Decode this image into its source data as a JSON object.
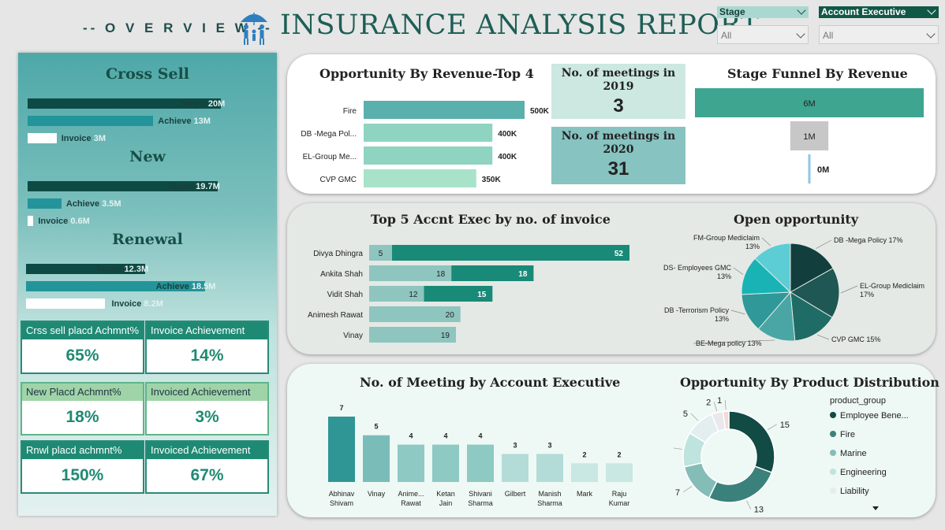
{
  "header": {
    "overview": "-- O V E R V I E W --",
    "title": "INSURANCE ANALYSIS REPORT",
    "filters": [
      {
        "label": "Stage",
        "value": "All"
      },
      {
        "label": "Account Executive",
        "value": "All"
      }
    ]
  },
  "left_panel": {
    "sections": [
      {
        "title": "Cross Sell",
        "bars": [
          {
            "label": "Target",
            "value": "20M",
            "amount": 20
          },
          {
            "label": "Achieve",
            "value": "13M",
            "amount": 13
          },
          {
            "label": "Invoice",
            "value": "3M",
            "amount": 3
          }
        ]
      },
      {
        "title": "New",
        "bars": [
          {
            "label": "Target",
            "value": "19.7M",
            "amount": 19.7
          },
          {
            "label": "Achieve",
            "value": "3.5M",
            "amount": 3.5
          },
          {
            "label": "Invoice",
            "value": "0.6M",
            "amount": 0.6
          }
        ]
      },
      {
        "title": "Renewal",
        "bars": [
          {
            "label": "Target",
            "value": "12.3M",
            "amount": 12.3
          },
          {
            "label": "Achieve",
            "value": "18.5M",
            "amount": 18.5
          },
          {
            "label": "Invoice",
            "value": "8.2M",
            "amount": 8.2
          }
        ]
      }
    ],
    "kpis": [
      {
        "label": "Crss sell placd Achmnt%",
        "value": "65%"
      },
      {
        "label": "Invoice Achievement",
        "value": "14%"
      },
      {
        "label": "New Placd Achmnt%",
        "value": "18%"
      },
      {
        "label": "Invoiced Achievement",
        "value": "3%"
      },
      {
        "label": "Rnwl placd achmnt%",
        "value": "150%"
      },
      {
        "label": "Invoiced Achievement",
        "value": "67%"
      }
    ],
    "colors": {
      "target": "#0e4a44",
      "achieve": "#23949a",
      "invoice": "#ffffff"
    }
  },
  "meetings": [
    {
      "label": "No. of meetings in 2019",
      "value": "3"
    },
    {
      "label": "No. of meetings in 2020",
      "value": "31"
    }
  ],
  "chart_data": [
    {
      "id": "opp_revenue_top4",
      "type": "bar",
      "orientation": "horizontal",
      "title": "Opportunity By Revenue-Top 4",
      "categories": [
        "Fire",
        "DB -Mega Pol...",
        "EL-Group Me...",
        "CVP GMC"
      ],
      "values": [
        500,
        400,
        400,
        350
      ],
      "value_labels": [
        "500K",
        "400K",
        "400K",
        "350K"
      ],
      "colors": [
        "#5ab0ad",
        "#8ed4c0",
        "#8ed4c0",
        "#a8e3c9"
      ]
    },
    {
      "id": "stage_funnel",
      "type": "bar",
      "orientation": "funnel",
      "title": "Stage Funnel By Revenue",
      "values": [
        6,
        1,
        0.05
      ],
      "value_labels": [
        "6M",
        "1M",
        "0M"
      ],
      "colors": [
        "#3ea590",
        "#c7c7c7",
        "#8cc8e0"
      ]
    },
    {
      "id": "top5_exec_invoice",
      "type": "bar",
      "orientation": "horizontal-stacked",
      "title": "Top 5 Accnt Exec by no. of invoice",
      "categories": [
        "Divya Dhingra",
        "Ankita Shah",
        "Vidit Shah",
        "Animesh Rawat",
        "Vinay"
      ],
      "series": [
        {
          "values": [
            5,
            18,
            12,
            20,
            19
          ],
          "color": "#8ec5bf"
        },
        {
          "values": [
            52,
            18,
            15,
            0,
            0
          ],
          "color": "#198a77"
        }
      ]
    },
    {
      "id": "open_opportunity",
      "type": "pie",
      "title": "Open opportunity",
      "slices": [
        {
          "label": "DB -Mega Policy 17%",
          "value": 17,
          "color": "#123f3d"
        },
        {
          "label": "EL-Group Mediclaim 17%",
          "value": 17,
          "color": "#1e5754"
        },
        {
          "label": "CVP GMC 15%",
          "value": 15,
          "color": "#1f6c66"
        },
        {
          "label": "BE-Mega policy 13%",
          "value": 13,
          "color": "#4aa6a4"
        },
        {
          "label": "DB -Terrorism Policy 13%",
          "value": 13,
          "color": "#2e9998"
        },
        {
          "label": "DS- Employees GMC 13%",
          "value": 13,
          "color": "#1ab3b5"
        },
        {
          "label": "FM-Group Mediclaim 13%",
          "value": 13,
          "color": "#5ccdd5"
        }
      ]
    },
    {
      "id": "meetings_by_exec",
      "type": "bar",
      "title": "No. of Meeting by Account Executive",
      "categories": [
        "Abhinav Shivam",
        "Vinay",
        "Anime... Rawat",
        "Ketan Jain",
        "Shivani Sharma",
        "Gilbert",
        "Manish Sharma",
        "Mark",
        "Raju Kumar"
      ],
      "values": [
        7,
        5,
        4,
        4,
        4,
        3,
        3,
        2,
        2
      ],
      "colors": [
        "#2f9695",
        "#7abcb8",
        "#8ec9c4",
        "#8ec9c4",
        "#8ec9c4",
        "#b3dcd8",
        "#b3dcd8",
        "#c9e7e3",
        "#c9e7e3"
      ]
    },
    {
      "id": "product_distribution",
      "type": "pie",
      "donut": true,
      "title": "Opportunity By Product Distribution",
      "legend_title": "product_group",
      "legend": [
        "Employee Bene...",
        "Fire",
        "Marine",
        "Engineering",
        "Liability"
      ],
      "slices": [
        {
          "value": 15,
          "color": "#124a44"
        },
        {
          "value": 13,
          "color": "#3a817c"
        },
        {
          "value": 7,
          "color": "#84bcb8"
        },
        {
          "value": 6,
          "color": "#bfe3df"
        },
        {
          "value": 5,
          "color": "#e2efee"
        },
        {
          "value": 2,
          "color": "#eae8ea"
        },
        {
          "value": 1,
          "color": "#f3dada"
        }
      ],
      "legend_colors": [
        "#124a44",
        "#3a817c",
        "#84bcb8",
        "#bfe3df",
        "#e2efee"
      ]
    }
  ]
}
